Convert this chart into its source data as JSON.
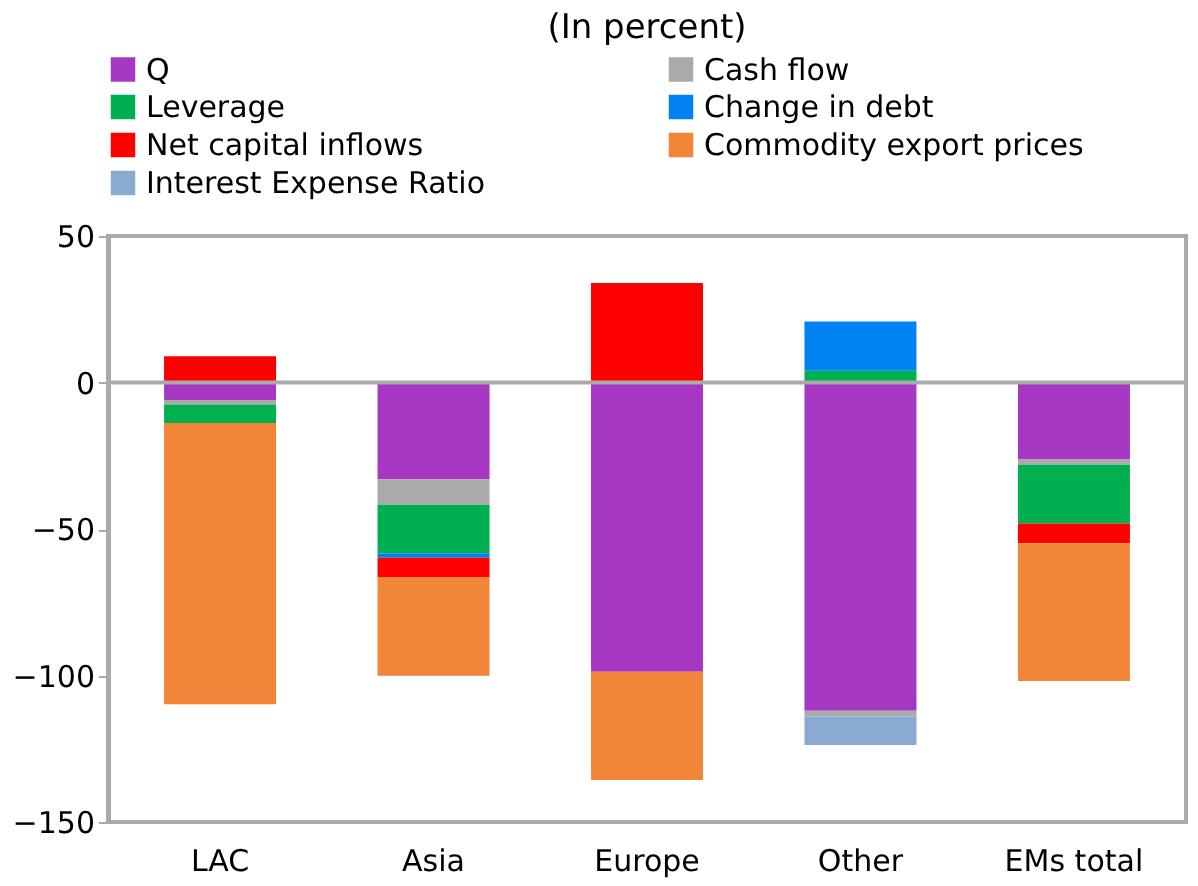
{
  "chart_data": {
    "type": "bar",
    "stacked": true,
    "title": "(In percent)",
    "categories": [
      "LAC",
      "Asia",
      "Europe",
      "Other",
      "EMs total"
    ],
    "series": [
      {
        "name": "Q",
        "color": "#a637c2",
        "values": [
          -6,
          -33,
          -98.7,
          -112,
          -26.3
        ]
      },
      {
        "name": "Cash flow",
        "color": "#aaaaaa",
        "values": [
          -1.5,
          -8.7,
          null,
          -2,
          -1.8
        ]
      },
      {
        "name": "Leverage",
        "color": "#00b050",
        "values": [
          -6.3,
          -16.6,
          null,
          4,
          -20
        ]
      },
      {
        "name": "Change in debt",
        "color": "#0083f0",
        "values": [
          null,
          -1.5,
          null,
          16.8,
          null
        ]
      },
      {
        "name": "Net capital inflows",
        "color": "#ff0000",
        "values": [
          9,
          -6.6,
          34,
          null,
          -6.8
        ]
      },
      {
        "name": "Commodity export prices",
        "color": "#f28638",
        "values": [
          -96,
          -33.7,
          -37,
          null,
          -47
        ]
      },
      {
        "name": "Interest Expense Ratio",
        "color": "#8aaad2",
        "values": [
          null,
          null,
          null,
          -9.7,
          null
        ]
      }
    ],
    "ylim": [
      -150,
      50
    ],
    "yticks": [
      -150,
      -100,
      -50,
      0,
      50
    ],
    "legend": "top"
  }
}
